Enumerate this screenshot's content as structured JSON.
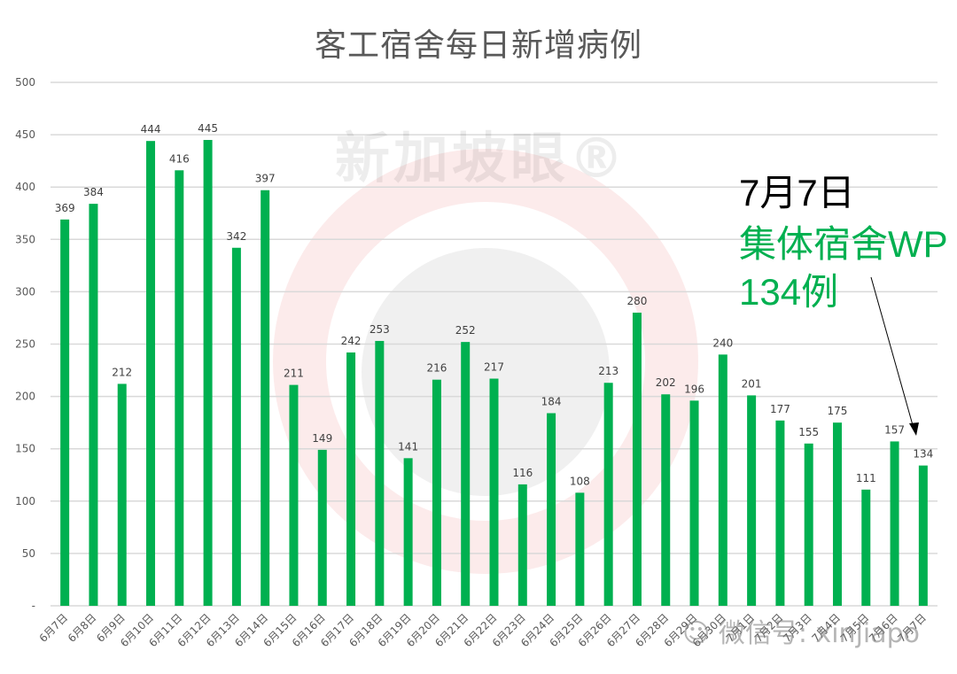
{
  "chart_data": {
    "type": "bar",
    "title": "客工宿舍每日新增病例",
    "xlabel": "",
    "ylabel": "",
    "ylim": [
      0,
      500
    ],
    "yticks": [
      0,
      50,
      100,
      150,
      200,
      250,
      300,
      350,
      400,
      450,
      500
    ],
    "ytick_labels": [
      "-",
      "50",
      "100",
      "150",
      "200",
      "250",
      "300",
      "350",
      "400",
      "450",
      "500"
    ],
    "grid": true,
    "legend": null,
    "bar_color": "#00b050",
    "categories": [
      "6月7日",
      "6月8日",
      "6月9日",
      "6月10日",
      "6月11日",
      "6月12日",
      "6月13日",
      "6月14日",
      "6月15日",
      "6月16日",
      "6月17日",
      "6月18日",
      "6月19日",
      "6月20日",
      "6月21日",
      "6月22日",
      "6月23日",
      "6月24日",
      "6月25日",
      "6月26日",
      "6月27日",
      "6月28日",
      "6月29日",
      "6月30日",
      "7月1日",
      "7月2日",
      "7月3日",
      "7月4日",
      "7月5日",
      "7月6日",
      "7月7日"
    ],
    "values": [
      369,
      384,
      212,
      444,
      416,
      445,
      342,
      397,
      211,
      149,
      242,
      253,
      141,
      216,
      252,
      217,
      116,
      184,
      108,
      213,
      280,
      202,
      196,
      240,
      201,
      177,
      155,
      175,
      111,
      157,
      134
    ],
    "annotations": [
      {
        "text": "7月7日",
        "color": "#000000"
      },
      {
        "text": "集体宿舍WP",
        "color": "#00b050"
      },
      {
        "text": "134例",
        "color": "#00b050"
      }
    ]
  },
  "annotation": {
    "date": "7月7日",
    "line1": "集体宿舍WP",
    "line2": "134例"
  },
  "watermark": {
    "brand": "新加坡眼®",
    "wechat": "微信号: xinjiapo"
  },
  "colors": {
    "bar": "#00b050",
    "grid": "#d9d9d9",
    "axis_text": "#595959",
    "watermark_red": "#e03030"
  }
}
